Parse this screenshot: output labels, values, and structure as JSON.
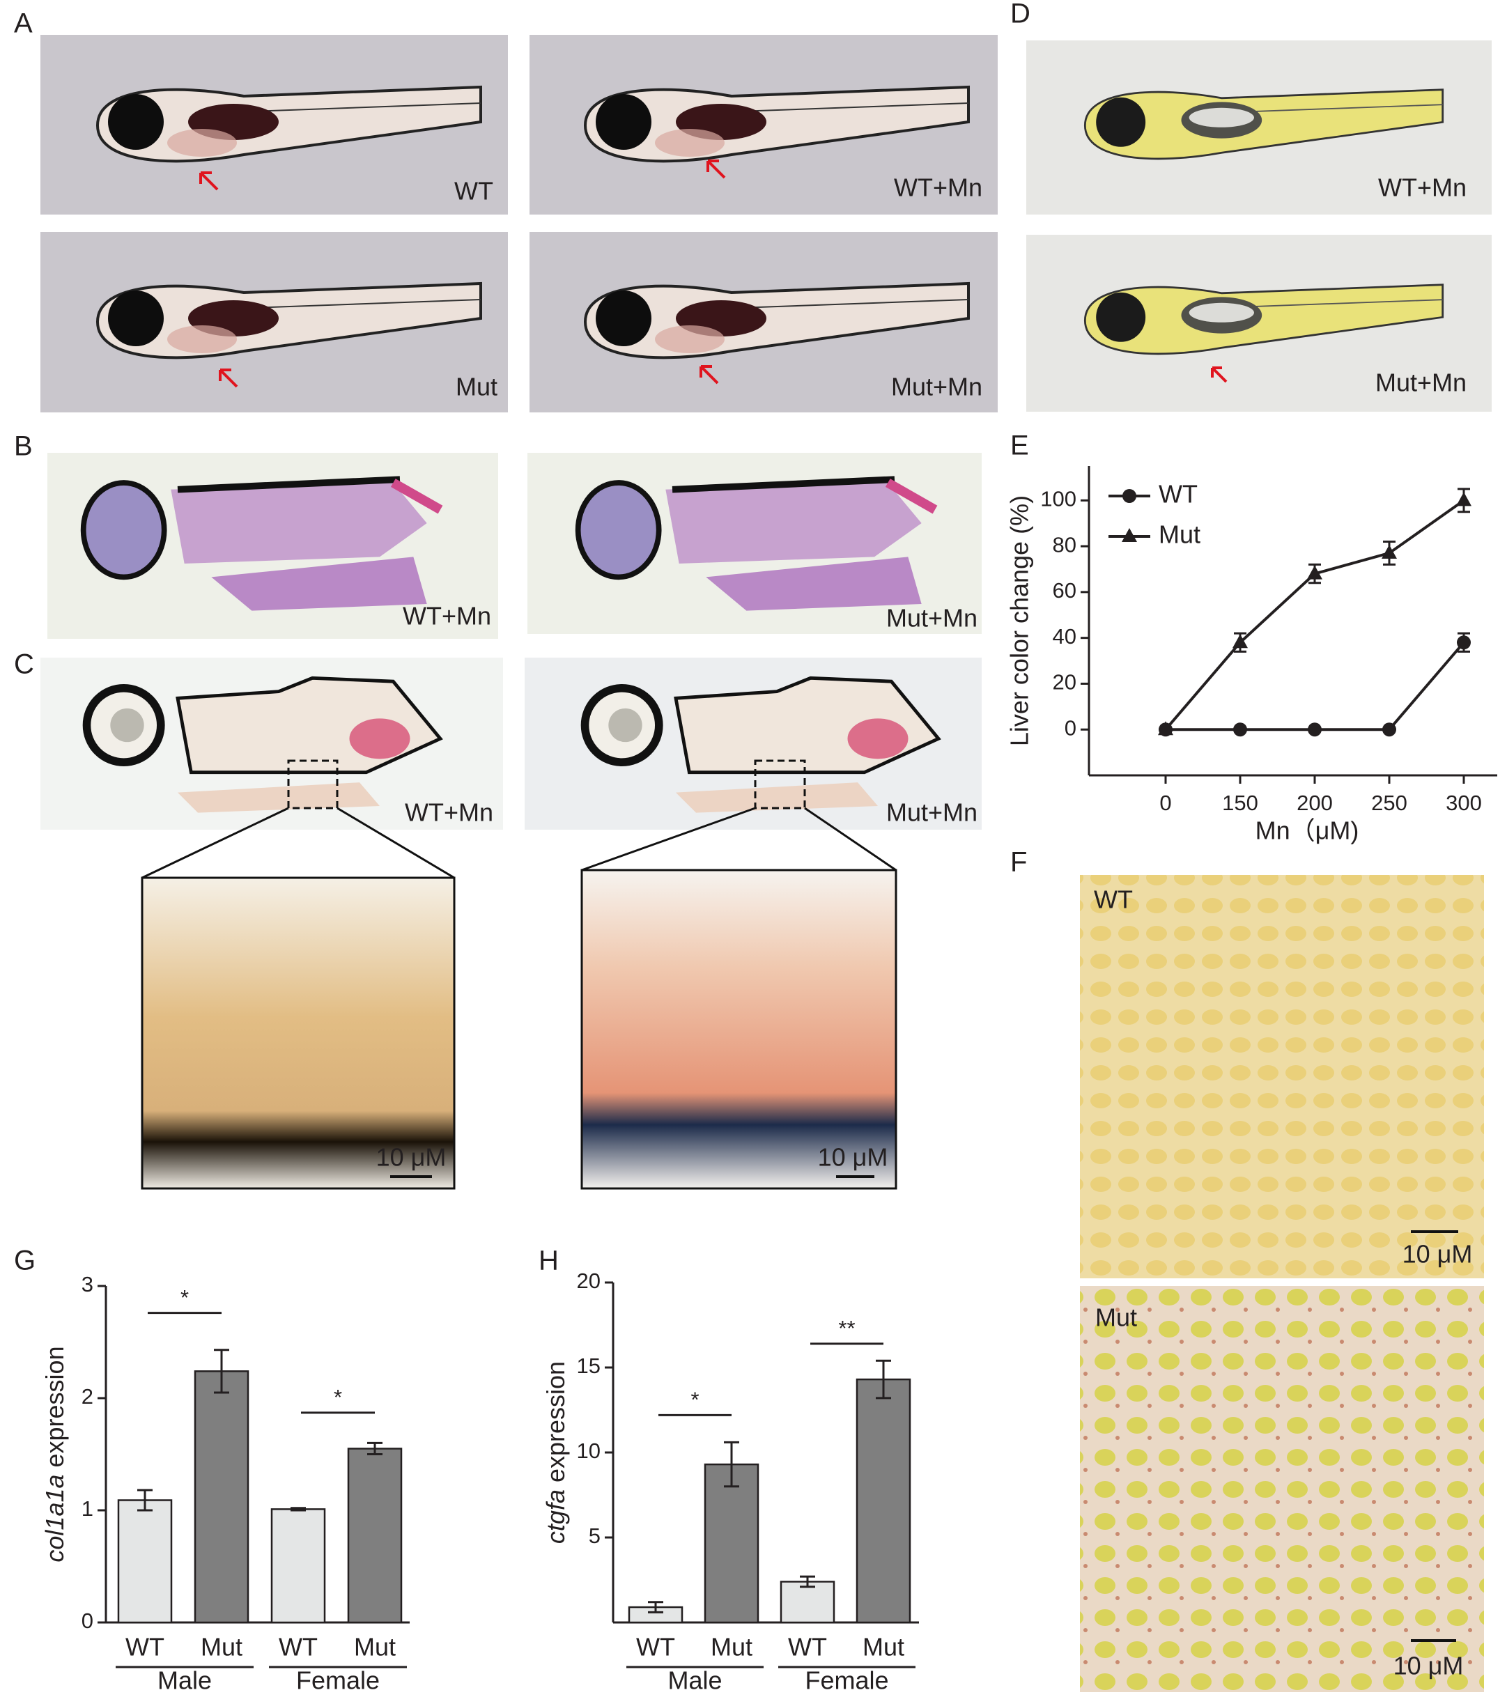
{
  "panels": {
    "A": {
      "label": "A",
      "images": [
        "WT",
        "WT+Mn",
        "Mut",
        "Mut+Mn"
      ]
    },
    "B": {
      "label": "B",
      "images": [
        "WT+Mn",
        "Mut+Mn"
      ]
    },
    "C": {
      "label": "C",
      "images": [
        "WT+Mn",
        "Mut+Mn"
      ],
      "scale_bars": [
        "10 μM",
        "10 μM"
      ]
    },
    "D": {
      "label": "D",
      "images": [
        "WT+Mn",
        "Mut+Mn"
      ]
    },
    "E": {
      "label": "E"
    },
    "F": {
      "label": "F",
      "images": [
        "WT",
        "Mut"
      ],
      "scale_bars": [
        "10 μM",
        "10 μM"
      ]
    },
    "G": {
      "label": "G"
    },
    "H": {
      "label": "H"
    }
  },
  "chart_data": [
    {
      "type": "line",
      "ylabel": "Liver color change (%)",
      "xlabel": "Mn（μM)",
      "categories": [
        0,
        150,
        200,
        250,
        300
      ],
      "ylim": [
        -20,
        115
      ],
      "yticks": [
        0,
        20,
        40,
        60,
        80,
        100
      ],
      "legend": "upper left",
      "series": [
        {
          "name": "WT",
          "marker": "circle",
          "color": "#231f20",
          "values": [
            0,
            0,
            0,
            0,
            38
          ],
          "errors": [
            0,
            0,
            0,
            0,
            4
          ]
        },
        {
          "name": "Mut",
          "marker": "triangle",
          "color": "#231f20",
          "values": [
            0,
            38,
            68,
            77,
            100
          ],
          "errors": [
            0,
            4,
            4,
            5,
            5
          ]
        }
      ]
    },
    {
      "type": "bar",
      "ylabel": [
        "col1a1a",
        "expression"
      ],
      "categories": [
        "WT",
        "Mut",
        "WT",
        "Mut"
      ],
      "groups": [
        "Male",
        "Female"
      ],
      "values": [
        1.09,
        2.24,
        1.01,
        1.55
      ],
      "errors": [
        0.09,
        0.19,
        0.01,
        0.05
      ],
      "colors": [
        "#e4e6e6",
        "#7f7f7f",
        "#e4e6e6",
        "#7f7f7f"
      ],
      "ylim": [
        0,
        3
      ],
      "yticks": [
        0,
        1,
        2,
        3
      ],
      "significance": [
        {
          "label": "*",
          "pair": [
            0,
            1
          ],
          "y": 2.76
        },
        {
          "label": "*",
          "pair": [
            2,
            3
          ],
          "y": 1.87
        }
      ]
    },
    {
      "type": "bar",
      "ylabel": [
        "ctgfa",
        "expression"
      ],
      "categories": [
        "WT",
        "Mut",
        "WT",
        "Mut"
      ],
      "groups": [
        "Male",
        "Female"
      ],
      "values": [
        0.9,
        9.3,
        2.4,
        14.3
      ],
      "errors": [
        0.3,
        1.3,
        0.3,
        1.1
      ],
      "colors": [
        "#e4e6e6",
        "#7f7f7f",
        "#e4e6e6",
        "#7f7f7f"
      ],
      "ylim": [
        0,
        20
      ],
      "yticks": [
        5,
        10,
        15,
        20
      ],
      "significance": [
        {
          "label": "*",
          "pair": [
            0,
            1
          ],
          "y": 12.2
        },
        {
          "label": "**",
          "pair": [
            2,
            3
          ],
          "y": 16.4
        }
      ]
    }
  ]
}
